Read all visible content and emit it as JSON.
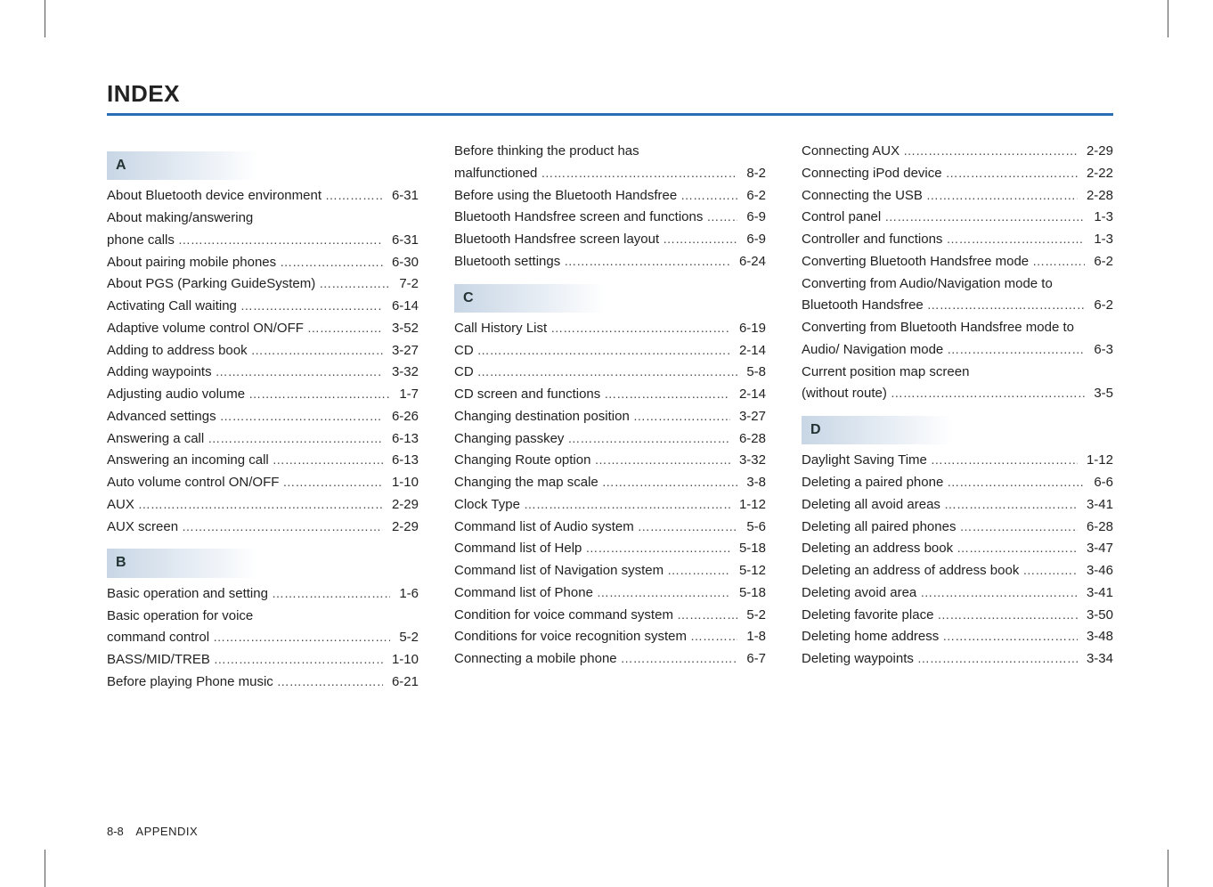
{
  "title": "INDEX",
  "footer": {
    "page": "8-8",
    "section": "APPENDIX"
  },
  "columns": [
    {
      "blocks": [
        {
          "type": "letter",
          "value": "A"
        },
        {
          "type": "entry",
          "label": "About Bluetooth device environment",
          "page": "6-31"
        },
        {
          "type": "cont",
          "label": "About making/answering"
        },
        {
          "type": "entry",
          "label": "phone calls",
          "page": "6-31"
        },
        {
          "type": "entry",
          "label": "About pairing mobile phones",
          "page": "6-30"
        },
        {
          "type": "entry",
          "label": "About PGS (Parking GuideSystem)",
          "page": "7-2"
        },
        {
          "type": "entry",
          "label": "Activating Call waiting",
          "page": "6-14"
        },
        {
          "type": "entry",
          "label": "Adaptive volume control ON/OFF",
          "page": "3-52"
        },
        {
          "type": "entry",
          "label": "Adding to address book",
          "page": "3-27"
        },
        {
          "type": "entry",
          "label": "Adding waypoints",
          "page": "3-32"
        },
        {
          "type": "entry",
          "label": "Adjusting audio volume",
          "page": "1-7"
        },
        {
          "type": "entry",
          "label": "Advanced settings",
          "page": "6-26"
        },
        {
          "type": "entry",
          "label": "Answering a call",
          "page": "6-13"
        },
        {
          "type": "entry",
          "label": "Answering an incoming call",
          "page": "6-13"
        },
        {
          "type": "entry",
          "label": "Auto volume control ON/OFF",
          "page": "1-10"
        },
        {
          "type": "entry",
          "label": "AUX",
          "page": "2-29"
        },
        {
          "type": "entry",
          "label": "AUX screen",
          "page": "2-29"
        },
        {
          "type": "letter",
          "value": "B"
        },
        {
          "type": "entry",
          "label": "Basic operation and setting",
          "page": "1-6"
        },
        {
          "type": "cont",
          "label": "Basic operation for voice"
        },
        {
          "type": "entry",
          "label": "command control",
          "page": "5-2"
        },
        {
          "type": "entry",
          "label": "BASS/MID/TREB",
          "page": "1-10"
        },
        {
          "type": "entry",
          "label": "Before playing Phone music",
          "page": "6-21"
        }
      ]
    },
    {
      "blocks": [
        {
          "type": "cont",
          "label": "Before thinking the product has"
        },
        {
          "type": "entry",
          "label": "malfunctioned",
          "page": "8-2"
        },
        {
          "type": "entry",
          "label": "Before using the Bluetooth Handsfree",
          "page": "6-2"
        },
        {
          "type": "entry",
          "label": "Bluetooth Handsfree screen and functions",
          "page": "6-9"
        },
        {
          "type": "entry",
          "label": "Bluetooth Handsfree screen layout",
          "page": "6-9"
        },
        {
          "type": "entry",
          "label": "Bluetooth settings",
          "page": "6-24"
        },
        {
          "type": "letter",
          "value": "C"
        },
        {
          "type": "entry",
          "label": "Call History List",
          "page": "6-19"
        },
        {
          "type": "entry",
          "label": "CD",
          "page": "2-14"
        },
        {
          "type": "entry",
          "label": "CD",
          "page": "5-8"
        },
        {
          "type": "entry",
          "label": "CD screen and functions",
          "page": "2-14"
        },
        {
          "type": "entry",
          "label": "Changing destination position",
          "page": "3-27"
        },
        {
          "type": "entry",
          "label": "Changing passkey",
          "page": "6-28"
        },
        {
          "type": "entry",
          "label": "Changing Route option",
          "page": "3-32"
        },
        {
          "type": "entry",
          "label": "Changing the map scale",
          "page": "3-8"
        },
        {
          "type": "entry",
          "label": "Clock Type",
          "page": "1-12"
        },
        {
          "type": "entry",
          "label": "Command list of Audio system",
          "page": "5-6"
        },
        {
          "type": "entry",
          "label": "Command list of Help",
          "page": "5-18"
        },
        {
          "type": "entry",
          "label": "Command list of Navigation system",
          "page": "5-12"
        },
        {
          "type": "entry",
          "label": "Command list of Phone",
          "page": "5-18"
        },
        {
          "type": "entry",
          "label": "Condition for voice command system",
          "page": "5-2"
        },
        {
          "type": "entry",
          "label": "Conditions for voice recognition system",
          "page": "1-8"
        },
        {
          "type": "entry",
          "label": "Connecting a mobile phone",
          "page": "6-7"
        }
      ]
    },
    {
      "blocks": [
        {
          "type": "entry",
          "label": "Connecting AUX",
          "page": "2-29"
        },
        {
          "type": "entry",
          "label": "Connecting iPod device",
          "page": "2-22"
        },
        {
          "type": "entry",
          "label": "Connecting the USB",
          "page": "2-28"
        },
        {
          "type": "entry",
          "label": "Control panel",
          "page": "1-3"
        },
        {
          "type": "entry",
          "label": "Controller and functions",
          "page": "1-3"
        },
        {
          "type": "entry",
          "label": "Converting Bluetooth Handsfree mode",
          "page": "6-2"
        },
        {
          "type": "cont",
          "label": "Converting from Audio/Navigation mode to"
        },
        {
          "type": "entry",
          "label": "Bluetooth Handsfree",
          "page": "6-2"
        },
        {
          "type": "cont",
          "label": "Converting from Bluetooth Handsfree mode to"
        },
        {
          "type": "entry",
          "label": "Audio/ Navigation mode",
          "page": "6-3"
        },
        {
          "type": "cont",
          "label": "Current position map screen"
        },
        {
          "type": "entry",
          "label": "(without route)",
          "page": "3-5"
        },
        {
          "type": "letter",
          "value": "D"
        },
        {
          "type": "entry",
          "label": "Daylight Saving Time",
          "page": "1-12"
        },
        {
          "type": "entry",
          "label": "Deleting a paired phone",
          "page": "6-6"
        },
        {
          "type": "entry",
          "label": "Deleting all avoid areas",
          "page": "3-41"
        },
        {
          "type": "entry",
          "label": "Deleting all paired phones",
          "page": "6-28"
        },
        {
          "type": "entry",
          "label": "Deleting an address book",
          "page": "3-47"
        },
        {
          "type": "entry",
          "label": "Deleting an address of address book",
          "page": "3-46"
        },
        {
          "type": "entry",
          "label": "Deleting avoid area",
          "page": "3-41"
        },
        {
          "type": "entry",
          "label": "Deleting favorite place",
          "page": "3-50"
        },
        {
          "type": "entry",
          "label": "Deleting home address",
          "page": "3-48"
        },
        {
          "type": "entry",
          "label": "Deleting waypoints",
          "page": "3-34"
        }
      ]
    }
  ],
  "style": {
    "title_color": "#222222",
    "rule_color": "#2a6fb5",
    "letter_bg_from": "#c8d6e5",
    "letter_bg_to": "#ffffff",
    "text_color": "#222222",
    "font_size_body": 15,
    "font_size_title": 26
  }
}
